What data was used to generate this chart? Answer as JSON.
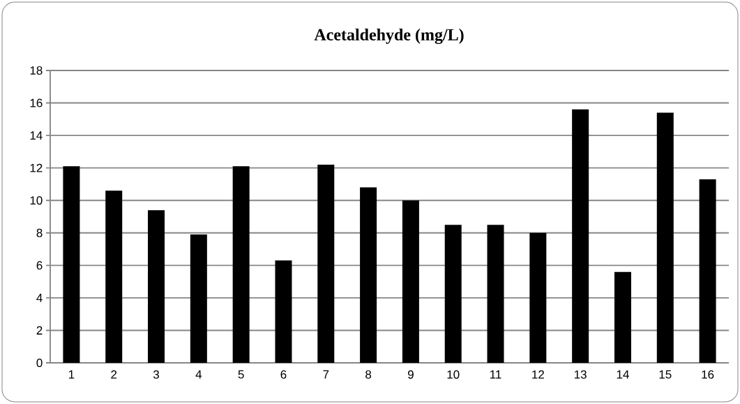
{
  "chart_data": {
    "type": "bar",
    "title": "Acetaldehyde (mg/L)",
    "categories": [
      "1",
      "2",
      "3",
      "4",
      "5",
      "6",
      "7",
      "8",
      "9",
      "10",
      "11",
      "12",
      "13",
      "14",
      "15",
      "16"
    ],
    "values": [
      12.1,
      10.6,
      9.4,
      7.9,
      12.1,
      6.3,
      12.2,
      10.8,
      10.0,
      8.5,
      8.5,
      8.0,
      15.6,
      5.6,
      15.4,
      11.3
    ],
    "color": "#000000",
    "ylim": [
      0,
      18
    ],
    "yticks": [
      0,
      2,
      4,
      6,
      8,
      10,
      12,
      14,
      16,
      18
    ],
    "grid": "y"
  }
}
